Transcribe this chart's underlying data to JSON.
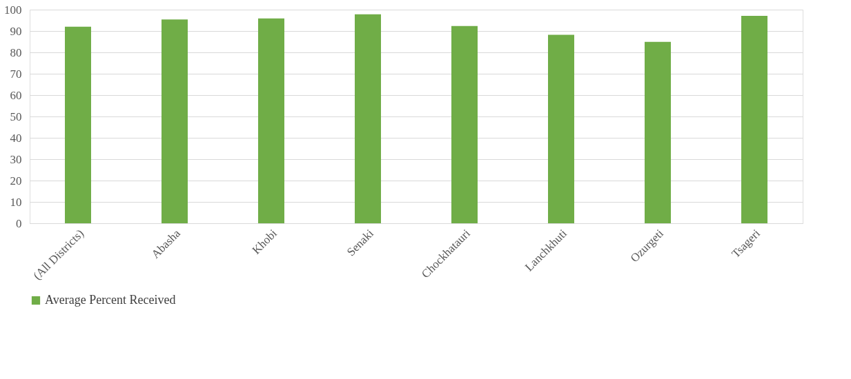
{
  "chart_data": {
    "type": "bar",
    "categories": [
      "(All Districts)",
      "Abasha",
      "Khobi",
      "Senaki",
      "Chockhatauri",
      "Lanchkhuti",
      "Ozurgeti",
      "Tsageri"
    ],
    "series": [
      {
        "name": "Average Percent Received",
        "color": "#70ad47",
        "values": [
          92.0,
          95.4,
          95.9,
          97.8,
          92.3,
          88.2,
          84.9,
          97.1
        ]
      }
    ],
    "ylim": [
      0,
      100
    ],
    "yticks": [
      0,
      10,
      20,
      30,
      40,
      50,
      60,
      70,
      80,
      90,
      100
    ],
    "grid": "y",
    "legend": "bottom"
  }
}
